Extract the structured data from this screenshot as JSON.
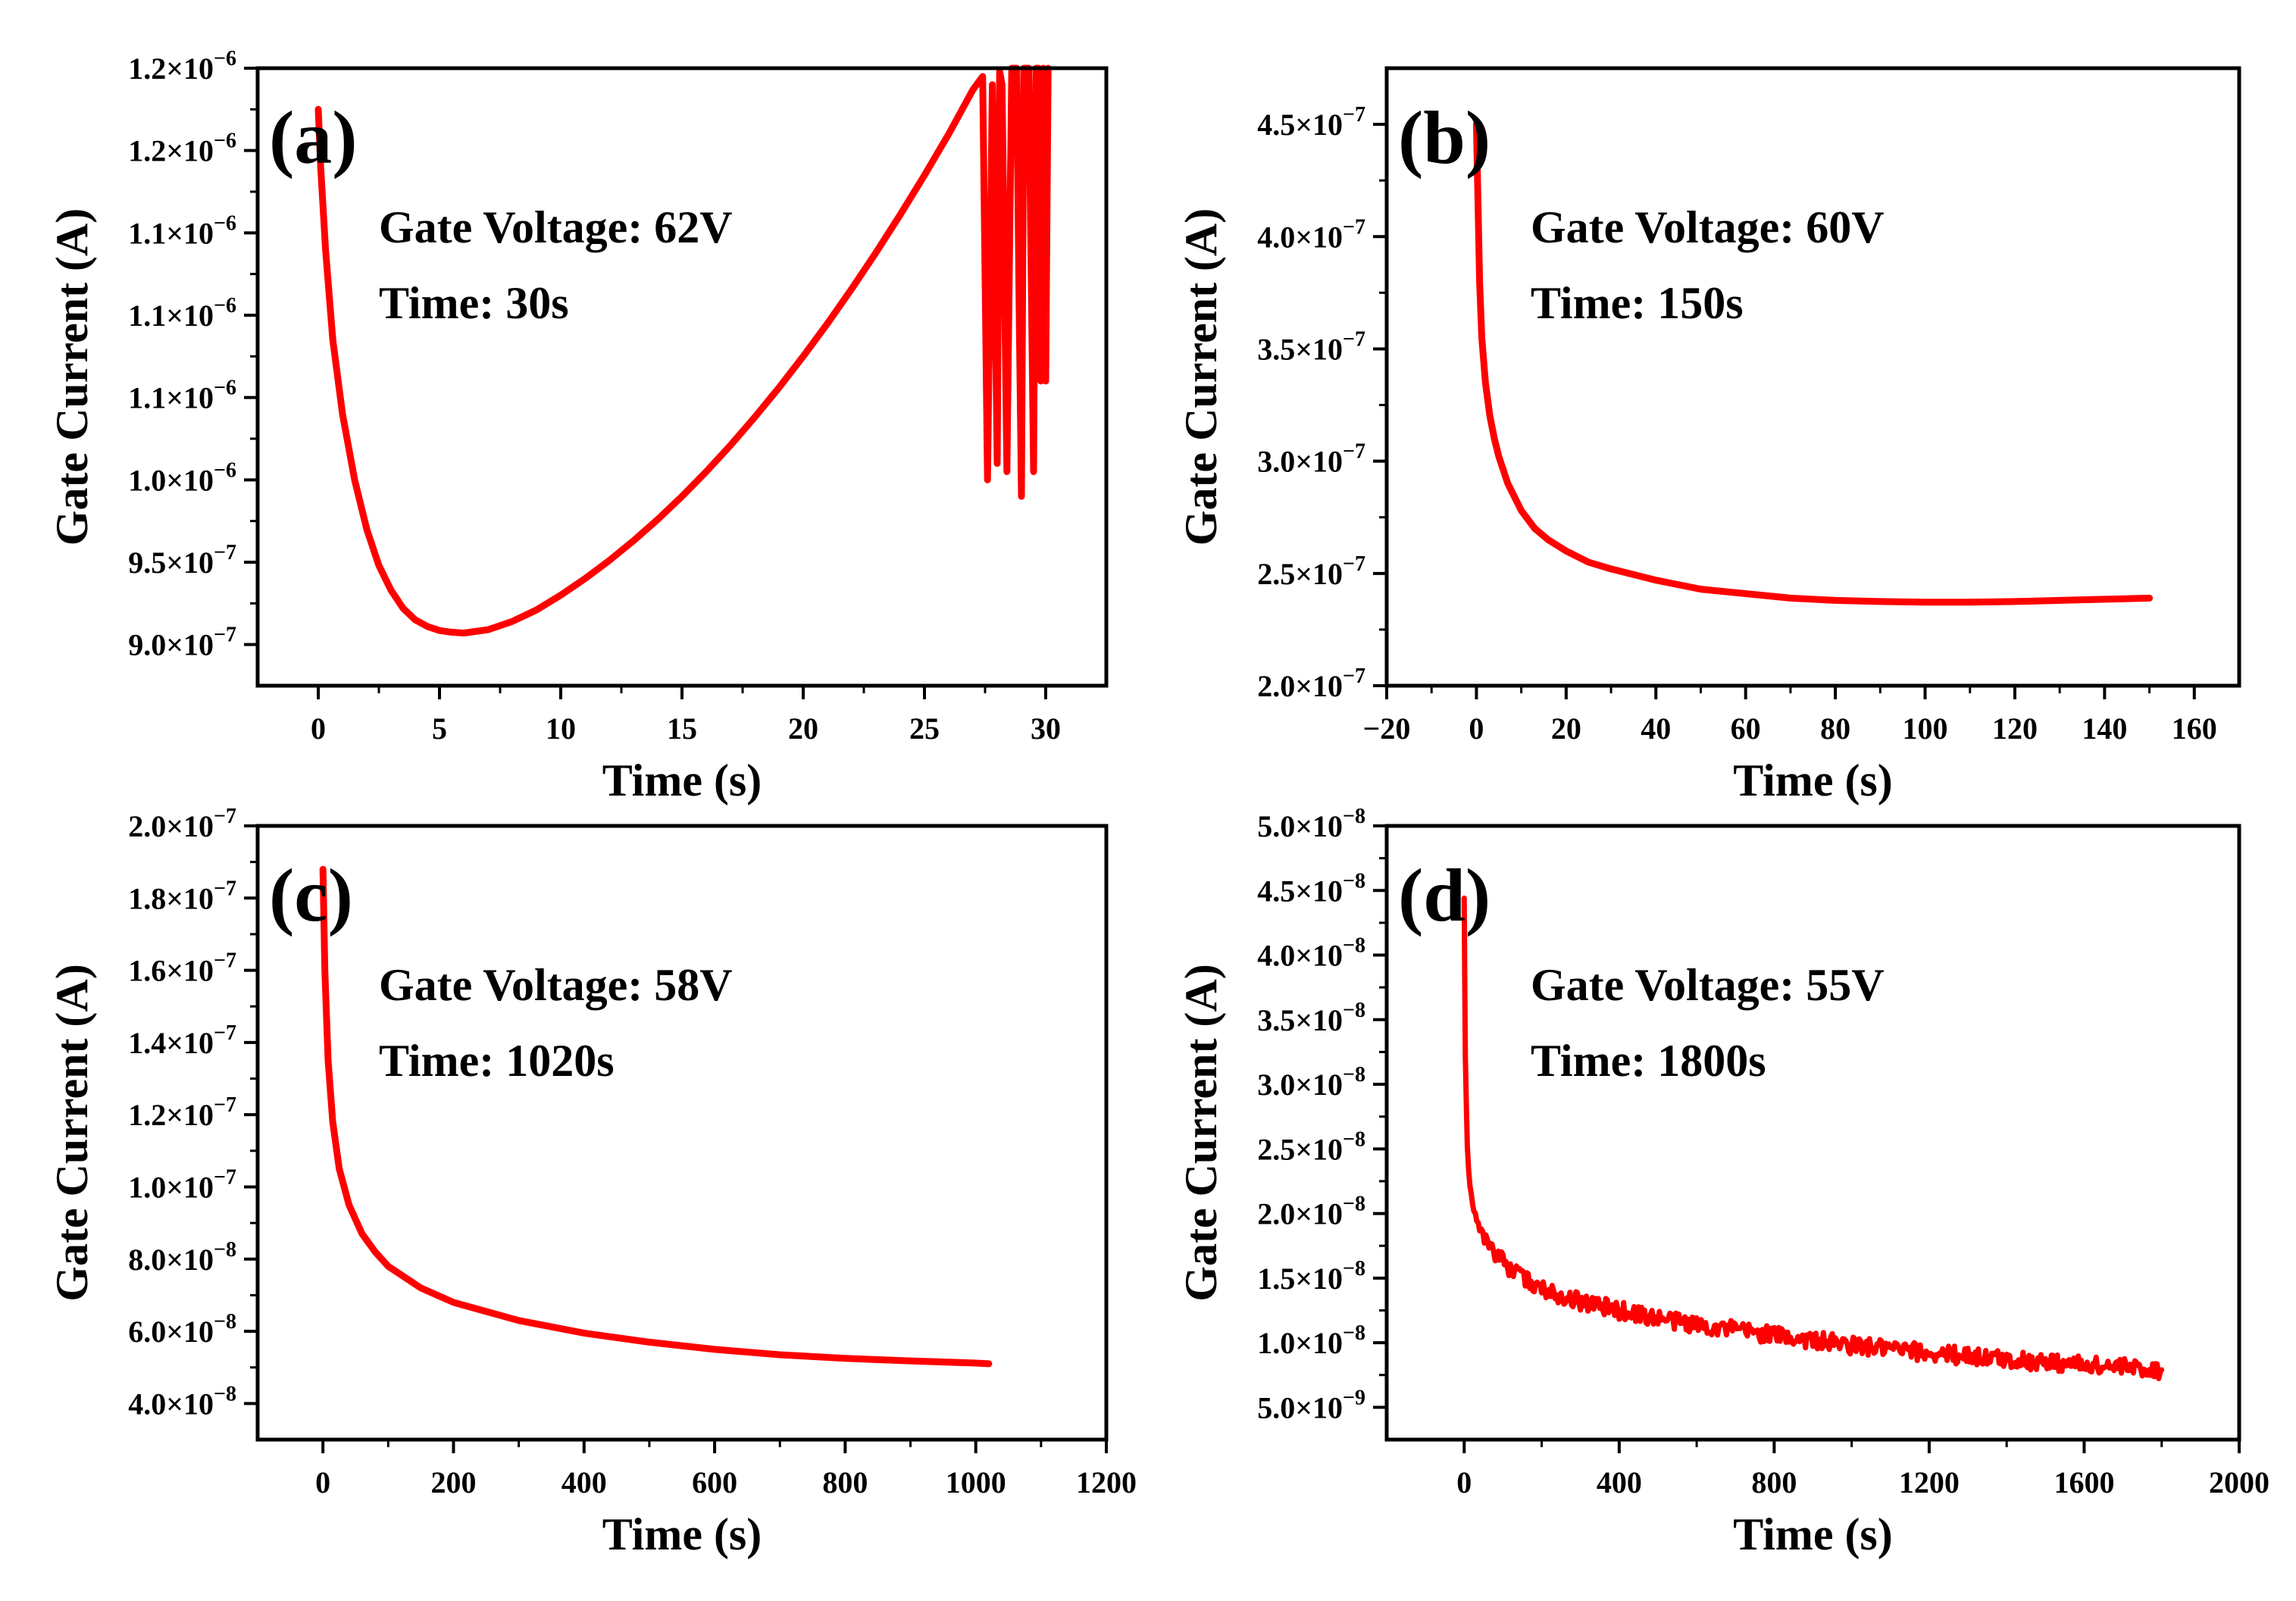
{
  "chart_data": [
    {
      "type": "line",
      "panel_label": "(a)",
      "annotations": [
        "Gate Voltage: 62V",
        "Time: 30s"
      ],
      "xlabel": "Time (s)",
      "ylabel": "Gate Current (A)",
      "xlim": [
        -2.5,
        32.5
      ],
      "ylim": [
        8.75e-07,
        1.25e-06
      ],
      "x_ticks": [
        0,
        5,
        10,
        15,
        20,
        25,
        30
      ],
      "x_tick_labels": [
        "0",
        "5",
        "10",
        "15",
        "20",
        "25",
        "30"
      ],
      "y_ticks": [
        9e-07,
        9.5e-07,
        1e-06,
        1.05e-06,
        1.1e-06,
        1.15e-06,
        1.2e-06,
        1.25e-06
      ],
      "y_tick_labels": [
        {
          "mantissa": "9.0×10",
          "exp": "−7"
        },
        {
          "mantissa": "9.5×10",
          "exp": "−7"
        },
        {
          "mantissa": "1.0×10",
          "exp": "−6"
        },
        {
          "mantissa": "1.1×10",
          "exp": "−6"
        },
        {
          "mantissa": "1.1×10",
          "exp": "−6"
        },
        {
          "mantissa": "1.1×10",
          "exp": "−6"
        },
        {
          "mantissa": "1.2×10",
          "exp": "−6"
        },
        {
          "mantissa": "1.2×10",
          "exp": "−6"
        }
      ],
      "grid": false,
      "series": [
        {
          "color": "#ff0000",
          "x": [
            0,
            0.1,
            0.3,
            0.6,
            1,
            1.5,
            2,
            2.5,
            3,
            3.5,
            4,
            4.5,
            5,
            5.5,
            6,
            7,
            8,
            9,
            10,
            11,
            12,
            13,
            14,
            15,
            16,
            17,
            18,
            19,
            20,
            21,
            22,
            23,
            24,
            25,
            26,
            27,
            27.4,
            27.6,
            27.8,
            28.0,
            28.1,
            28.2,
            28.4,
            28.6,
            28.8,
            28.9,
            29.0,
            29.1,
            29.3,
            29.5,
            29.6,
            29.7,
            29.8,
            29.9,
            30.0,
            30.1
          ],
          "y": [
            1.225e-06,
            1.19e-06,
            1.14e-06,
            1.085e-06,
            1.04e-06,
            1e-06,
            9.7e-07,
            9.48e-07,
            9.33e-07,
            9.22e-07,
            9.15e-07,
            9.11e-07,
            9.085e-07,
            9.075e-07,
            9.07e-07,
            9.09e-07,
            9.14e-07,
            9.21e-07,
            9.3e-07,
            9.4e-07,
            9.51e-07,
            9.63e-07,
            9.76e-07,
            9.9e-07,
            1.005e-06,
            1.021e-06,
            1.038e-06,
            1.056e-06,
            1.075e-06,
            1.095e-06,
            1.116e-06,
            1.138e-06,
            1.161e-06,
            1.185e-06,
            1.21e-06,
            1.237e-06,
            1.245e-06,
            1e-06,
            1.24e-06,
            1.01e-06,
            1.248e-06,
            1.24e-06,
            1.005e-06,
            1.25e-06,
            1.25e-06,
            1.11e-06,
            9.9e-07,
            1.25e-06,
            1.25e-06,
            1.005e-06,
            1.25e-06,
            1.25e-06,
            1.06e-06,
            1.25e-06,
            1.06e-06,
            1.25e-06
          ]
        }
      ]
    },
    {
      "type": "line",
      "panel_label": "(b)",
      "annotations": [
        "Gate Voltage: 60V",
        "Time: 150s"
      ],
      "xlabel": "Time (s)",
      "ylabel": "Gate Current (A)",
      "xlim": [
        -20,
        170
      ],
      "ylim": [
        2e-07,
        4.75e-07
      ],
      "x_ticks": [
        -20,
        0,
        20,
        40,
        60,
        80,
        100,
        120,
        140,
        160
      ],
      "x_tick_labels": [
        "−20",
        "0",
        "20",
        "40",
        "60",
        "80",
        "100",
        "120",
        "140",
        "160"
      ],
      "y_ticks": [
        2e-07,
        2.5e-07,
        3e-07,
        3.5e-07,
        4e-07,
        4.5e-07
      ],
      "y_tick_labels": [
        {
          "mantissa": "2.0×10",
          "exp": "−7"
        },
        {
          "mantissa": "2.5×10",
          "exp": "−7"
        },
        {
          "mantissa": "3.0×10",
          "exp": "−7"
        },
        {
          "mantissa": "3.5×10",
          "exp": "−7"
        },
        {
          "mantissa": "4.0×10",
          "exp": "−7"
        },
        {
          "mantissa": "4.5×10",
          "exp": "−7"
        }
      ],
      "grid": false,
      "series": [
        {
          "color": "#ff0000",
          "x": [
            0,
            0.3,
            0.7,
            1.2,
            2,
            3,
            4,
            5,
            7,
            10,
            13,
            16,
            20,
            25,
            30,
            40,
            50,
            60,
            70,
            80,
            90,
            100,
            110,
            120,
            130,
            140,
            150
          ],
          "y": [
            4.5e-07,
            4.2e-07,
            3.8e-07,
            3.55e-07,
            3.35e-07,
            3.2e-07,
            3.1e-07,
            3.02e-07,
            2.9e-07,
            2.78e-07,
            2.7e-07,
            2.65e-07,
            2.6e-07,
            2.55e-07,
            2.52e-07,
            2.47e-07,
            2.43e-07,
            2.41e-07,
            2.39e-07,
            2.38e-07,
            2.375e-07,
            2.372e-07,
            2.372e-07,
            2.375e-07,
            2.38e-07,
            2.385e-07,
            2.39e-07
          ]
        }
      ]
    },
    {
      "type": "line",
      "panel_label": "(c)",
      "annotations": [
        "Gate Voltage: 58V",
        "Time: 1020s"
      ],
      "xlabel": "Time (s)",
      "ylabel": "Gate Current (A)",
      "xlim": [
        -100,
        1200
      ],
      "ylim": [
        3e-08,
        2e-07
      ],
      "x_ticks": [
        0,
        200,
        400,
        600,
        800,
        1000,
        1200
      ],
      "x_tick_labels": [
        "0",
        "200",
        "400",
        "600",
        "800",
        "1000",
        "1200"
      ],
      "y_ticks": [
        4e-08,
        6e-08,
        8e-08,
        1e-07,
        1.2e-07,
        1.4e-07,
        1.6e-07,
        1.8e-07,
        2e-07
      ],
      "y_tick_labels": [
        {
          "mantissa": "4.0×10",
          "exp": "−8"
        },
        {
          "mantissa": "6.0×10",
          "exp": "−8"
        },
        {
          "mantissa": "8.0×10",
          "exp": "−8"
        },
        {
          "mantissa": "1.0×10",
          "exp": "−7"
        },
        {
          "mantissa": "1.2×10",
          "exp": "−7"
        },
        {
          "mantissa": "1.4×10",
          "exp": "−7"
        },
        {
          "mantissa": "1.6×10",
          "exp": "−7"
        },
        {
          "mantissa": "1.8×10",
          "exp": "−7"
        },
        {
          "mantissa": "2.0×10",
          "exp": "−7"
        }
      ],
      "grid": false,
      "series": [
        {
          "color": "#ff0000",
          "x": [
            0,
            3,
            8,
            15,
            25,
            40,
            60,
            80,
            100,
            150,
            200,
            300,
            400,
            500,
            600,
            700,
            800,
            900,
            1000,
            1020
          ],
          "y": [
            1.88e-07,
            1.6e-07,
            1.35e-07,
            1.18e-07,
            1.05e-07,
            9.5e-08,
            8.7e-08,
            8.2e-08,
            7.8e-08,
            7.2e-08,
            6.8e-08,
            6.3e-08,
            5.95e-08,
            5.7e-08,
            5.5e-08,
            5.35e-08,
            5.25e-08,
            5.18e-08,
            5.12e-08,
            5.1e-08
          ]
        }
      ]
    },
    {
      "type": "line",
      "panel_label": "(d)",
      "annotations": [
        "Gate Voltage: 55V",
        "Time: 1800s"
      ],
      "xlabel": "Time (s)",
      "ylabel": "Gate Current (A)",
      "xlim": [
        -200,
        2000
      ],
      "ylim": [
        2.5e-09,
        5e-08
      ],
      "x_ticks": [
        0,
        400,
        800,
        1200,
        1600,
        2000
      ],
      "x_tick_labels": [
        "0",
        "400",
        "800",
        "1200",
        "1600",
        "2000"
      ],
      "y_ticks": [
        5e-09,
        1e-08,
        1.5e-08,
        2e-08,
        2.5e-08,
        3e-08,
        3.5e-08,
        4e-08,
        4.5e-08,
        5e-08
      ],
      "y_tick_labels": [
        {
          "mantissa": "5.0×10",
          "exp": "−9"
        },
        {
          "mantissa": "1.0×10",
          "exp": "−8"
        },
        {
          "mantissa": "1.5×10",
          "exp": "−8"
        },
        {
          "mantissa": "2.0×10",
          "exp": "−8"
        },
        {
          "mantissa": "2.5×10",
          "exp": "−8"
        },
        {
          "mantissa": "3.0×10",
          "exp": "−8"
        },
        {
          "mantissa": "3.5×10",
          "exp": "−8"
        },
        {
          "mantissa": "4.0×10",
          "exp": "−8"
        },
        {
          "mantissa": "4.5×10",
          "exp": "−8"
        },
        {
          "mantissa": "5.0×10",
          "exp": "−8"
        }
      ],
      "grid": false,
      "series": [
        {
          "color": "#ff0000",
          "x": [
            0,
            3,
            8,
            15,
            25,
            40,
            60,
            100,
            150,
            200,
            300,
            400,
            500,
            600,
            700,
            800,
            900,
            1000,
            1100,
            1200,
            1300,
            1400,
            1500,
            1600,
            1700,
            1800
          ],
          "y": [
            4.45e-08,
            3.2e-08,
            2.5e-08,
            2.2e-08,
            2.02e-08,
            1.88e-08,
            1.78e-08,
            1.62e-08,
            1.5e-08,
            1.42e-08,
            1.32e-08,
            1.25e-08,
            1.19e-08,
            1.14e-08,
            1.1e-08,
            1.06e-08,
            1.02e-08,
            9.8e-09,
            9.5e-09,
            9.2e-09,
            9e-09,
            8.7e-09,
            8.5e-09,
            8.3e-09,
            8.1e-09,
            7.9e-09
          ],
          "noise_band": 7e-10
        }
      ]
    }
  ]
}
